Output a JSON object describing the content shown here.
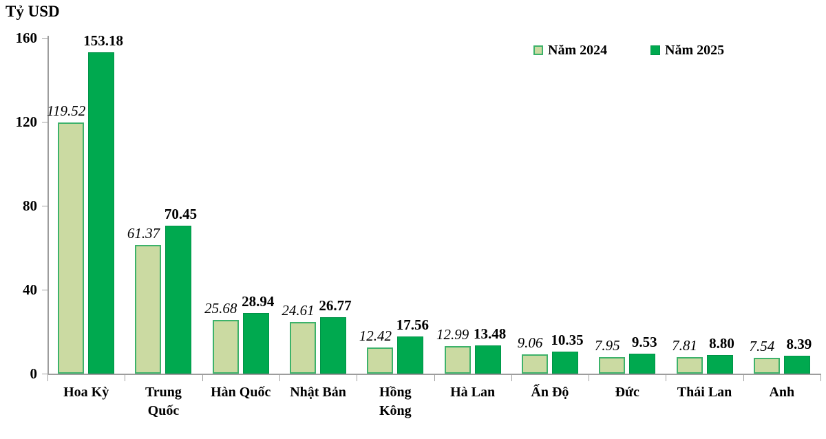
{
  "chart_data": {
    "type": "bar",
    "title": "Tỷ USD",
    "ylabel": "Tỷ USD",
    "xlabel": "",
    "ylim": [
      0,
      160
    ],
    "yticks": [
      0,
      40,
      80,
      120,
      160
    ],
    "grid": false,
    "legend_position": "top-right",
    "axis_color": "#9d9d9d",
    "text_color": "#000000",
    "background_color": "#ffffff",
    "categories": [
      "Hoa Kỳ",
      "Trung Quốc",
      "Hàn Quốc",
      "Nhật Bản",
      "Hồng Kông",
      "Hà Lan",
      "Ấn Độ",
      "Đức",
      "Thái Lan",
      "Anh"
    ],
    "series": [
      {
        "name": "Năm 2024",
        "values": [
          119.52,
          61.37,
          25.68,
          24.61,
          12.42,
          12.99,
          9.06,
          7.95,
          7.81,
          7.54
        ],
        "fill": "#cbdaa2",
        "border": "#3db26a",
        "label_style": "italic"
      },
      {
        "name": "Năm 2025",
        "values": [
          153.18,
          70.45,
          28.94,
          26.77,
          17.56,
          13.48,
          10.35,
          9.53,
          8.8,
          8.39
        ],
        "fill": "#00a94f",
        "border": "#009247",
        "label_style": "bold"
      }
    ],
    "value_label_decimals": 2
  }
}
